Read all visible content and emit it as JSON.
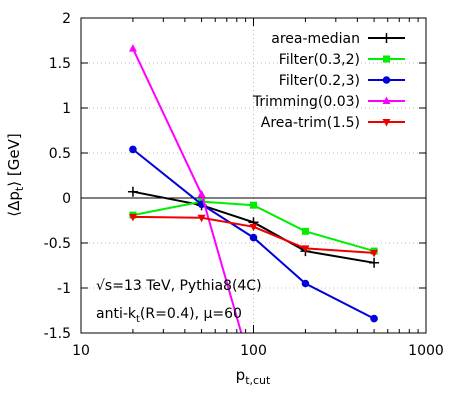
{
  "chart_data": {
    "type": "line",
    "xscale": "log",
    "xlim": [
      10,
      1000
    ],
    "ylim": [
      -1.5,
      2
    ],
    "xlabel": "p",
    "xlabel_sub": "t,cut",
    "ylabel": "⟨Δp⟩ [GeV]",
    "ylabel_sub": "t",
    "grid": true,
    "legend_position": "top-right",
    "x_ticks": [
      10,
      100,
      1000
    ],
    "x_tick_labels": [
      "10",
      "100",
      "1000"
    ],
    "y_ticks": [
      -1.5,
      -1,
      -0.5,
      0,
      0.5,
      1,
      1.5,
      2
    ],
    "y_tick_labels": [
      "-1.5",
      "-1",
      "-0.5",
      "0",
      "0.5",
      "1",
      "1.5",
      "2"
    ],
    "annotations": [
      "√s=13 TeV, Pythia8(4C)",
      "anti-k",
      "t",
      "(R=0.4), μ=60"
    ],
    "series": [
      {
        "name": "area-median",
        "color": "#000000",
        "marker": "plus",
        "x": [
          20,
          50,
          100,
          200,
          500
        ],
        "y": [
          0.07,
          -0.08,
          -0.27,
          -0.59,
          -0.72
        ]
      },
      {
        "name": "Filter(0.3,2)",
        "color": "#00ee00",
        "marker": "square",
        "x": [
          20,
          50,
          100,
          200,
          500
        ],
        "y": [
          -0.19,
          -0.04,
          -0.08,
          -0.37,
          -0.59
        ]
      },
      {
        "name": "Filter(0.2,3)",
        "color": "#0000dd",
        "marker": "circle",
        "x": [
          20,
          50,
          100,
          200,
          500
        ],
        "y": [
          0.54,
          -0.07,
          -0.44,
          -0.95,
          -1.34
        ]
      },
      {
        "name": "Trimming(0.03)",
        "color": "#ff00ff",
        "marker": "triangle",
        "x": [
          20,
          50,
          85
        ],
        "y": [
          1.66,
          0.04,
          -1.5
        ]
      },
      {
        "name": "Area-trim(1.5)",
        "color": "#ee0000",
        "marker": "triangle-down",
        "x": [
          20,
          50,
          100,
          200,
          500
        ],
        "y": [
          -0.21,
          -0.22,
          -0.32,
          -0.56,
          -0.61
        ]
      }
    ]
  }
}
